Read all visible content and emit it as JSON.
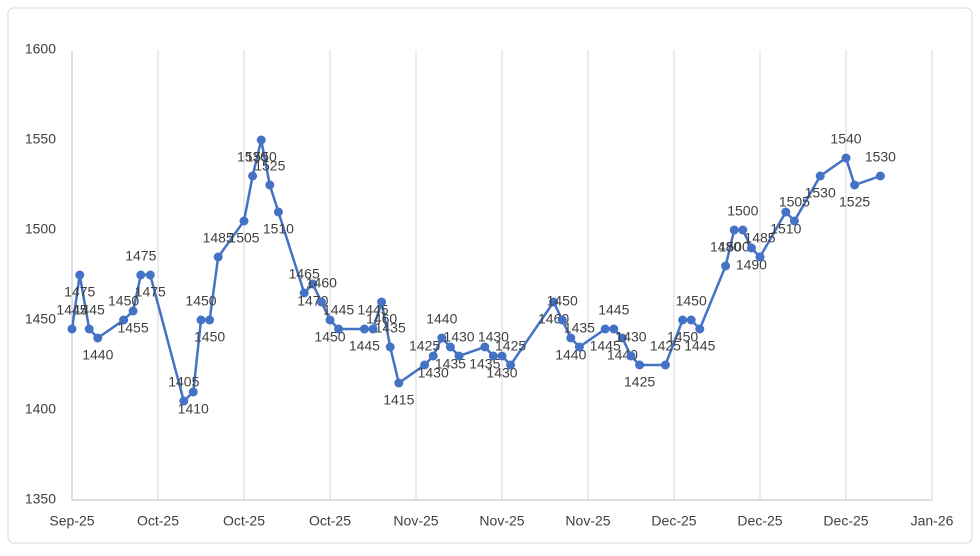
{
  "chart_data": {
    "type": "line",
    "x": [
      0,
      0.09,
      0.2,
      0.3,
      0.6,
      0.71,
      0.8,
      0.91,
      1.3,
      1.41,
      1.5,
      1.6,
      1.7,
      2.0,
      2.1,
      2.2,
      2.3,
      2.4,
      2.7,
      2.8,
      2.9,
      3.0,
      3.1,
      3.4,
      3.5,
      3.6,
      3.7,
      3.8,
      4.1,
      4.2,
      4.3,
      4.4,
      4.5,
      4.8,
      4.9,
      5.0,
      5.1,
      5.6,
      5.7,
      5.8,
      5.9,
      6.2,
      6.3,
      6.4,
      6.5,
      6.6,
      6.9,
      7.1,
      7.2,
      7.3,
      7.6,
      7.7,
      7.8,
      7.9,
      8.0,
      8.3,
      8.4,
      8.7,
      9.0,
      9.1,
      9.4
    ],
    "series": [
      {
        "color": "#4472c4",
        "values": [
          1445,
          1475,
          1445,
          1440,
          1450,
          1455,
          1475,
          1475,
          1405,
          1410,
          1450,
          1450,
          1485,
          1505,
          1530,
          1550,
          1525,
          1510,
          1465,
          1470,
          1460,
          1450,
          1445,
          1445,
          1445,
          1460,
          1435,
          1415,
          1425,
          1430,
          1440,
          1435,
          1430,
          1435,
          1430,
          1430,
          1425,
          1460,
          1450,
          1440,
          1435,
          1445,
          1445,
          1440,
          1430,
          1425,
          1425,
          1450,
          1450,
          1445,
          1480,
          1500,
          1500,
          1490,
          1485,
          1510,
          1505,
          1530,
          1540,
          1525,
          1530
        ]
      }
    ],
    "xlim": [
      0,
      10
    ],
    "xticks": [
      {
        "value": 0,
        "label": "Sep-25"
      },
      {
        "value": 1,
        "label": "Oct-25"
      },
      {
        "value": 2,
        "label": "Oct-25"
      },
      {
        "value": 3,
        "label": "Oct-25"
      },
      {
        "value": 4,
        "label": "Nov-25"
      },
      {
        "value": 5,
        "label": "Nov-25"
      },
      {
        "value": 6,
        "label": "Nov-25"
      },
      {
        "value": 7,
        "label": "Dec-25"
      },
      {
        "value": 8,
        "label": "Dec-25"
      },
      {
        "value": 9,
        "label": "Dec-25"
      },
      {
        "value": 10,
        "label": "Jan-26"
      }
    ],
    "ylim": [
      1350,
      1600
    ],
    "yticks": [
      1350,
      1400,
      1450,
      1500,
      1550,
      1600
    ],
    "grid": true
  }
}
